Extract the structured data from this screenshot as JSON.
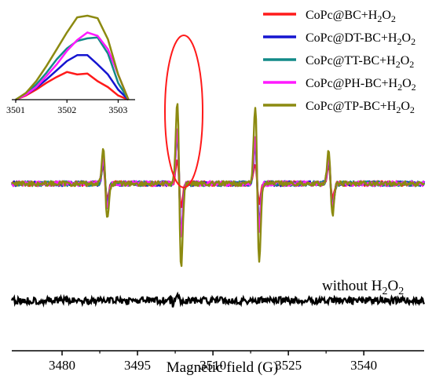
{
  "chart_data": {
    "type": "line",
    "title": "",
    "xlabel": "Magnetic field (G)",
    "ylabel": "",
    "xlim": [
      3470,
      3552
    ],
    "xticks": [
      3480,
      3495,
      3510,
      3525,
      3540
    ],
    "grid": false,
    "legend_placement": "top-right",
    "peaks": [
      {
        "center": 3488.6,
        "amplitude": [
          0.45,
          0.55,
          0.62,
          0.68,
          0.95
        ]
      },
      {
        "center": 3503.3,
        "amplitude": [
          0.62,
          1.35,
          1.4,
          1.45,
          2.2
        ]
      },
      {
        "center": 3518.8,
        "amplitude": [
          0.55,
          1.05,
          1.15,
          1.25,
          2.05
        ]
      },
      {
        "center": 3533.4,
        "amplitude": [
          0.45,
          0.62,
          0.65,
          0.68,
          0.85
        ]
      }
    ],
    "series": [
      {
        "name_base": "CoPc@BC+H",
        "name_sub": "2",
        "name_mid": "O",
        "name_sub2": "2",
        "color": "#ff1a1a"
      },
      {
        "name_base": "CoPc@DT-BC+H",
        "name_sub": "2",
        "name_mid": "O",
        "name_sub2": "2",
        "color": "#1515d0"
      },
      {
        "name_base": "CoPc@TT-BC+H",
        "name_sub": "2",
        "name_mid": "O",
        "name_sub2": "2",
        "color": "#128a88"
      },
      {
        "name_base": "CoPc@PH-BC+H",
        "name_sub": "2",
        "name_mid": "O",
        "name_sub2": "2",
        "color": "#ff1aff"
      },
      {
        "name_base": "CoPc@TP-BC+H",
        "name_sub": "2",
        "name_mid": "O",
        "name_sub2": "2",
        "color": "#8c8a10"
      }
    ],
    "control": {
      "label_base": "without H",
      "label_sub": "2",
      "label_mid": "O",
      "label_sub2": "2",
      "color": "#000000"
    },
    "inset": {
      "xlim": [
        3501,
        3503.3
      ],
      "xticks": [
        3501,
        3502,
        3503
      ],
      "x": [
        3501.0,
        3501.2,
        3501.4,
        3501.6,
        3501.8,
        3502.0,
        3502.2,
        3502.4,
        3502.6,
        3502.8,
        3503.0,
        3503.2
      ],
      "series": [
        {
          "color": "#ff1a1a",
          "values": [
            0.0,
            0.05,
            0.12,
            0.2,
            0.27,
            0.33,
            0.3,
            0.31,
            0.22,
            0.15,
            0.05,
            0.0
          ]
        },
        {
          "color": "#1515d0",
          "values": [
            0.0,
            0.06,
            0.14,
            0.24,
            0.35,
            0.46,
            0.53,
            0.53,
            0.42,
            0.3,
            0.12,
            0.0
          ]
        },
        {
          "color": "#128a88",
          "values": [
            0.0,
            0.07,
            0.18,
            0.32,
            0.48,
            0.61,
            0.7,
            0.73,
            0.74,
            0.55,
            0.2,
            0.0
          ]
        },
        {
          "color": "#ff1aff",
          "values": [
            0.0,
            0.06,
            0.15,
            0.28,
            0.42,
            0.58,
            0.71,
            0.8,
            0.76,
            0.6,
            0.3,
            0.0
          ]
        },
        {
          "color": "#8c8a10",
          "values": [
            0.0,
            0.08,
            0.22,
            0.4,
            0.6,
            0.8,
            0.98,
            1.0,
            0.97,
            0.72,
            0.3,
            0.0
          ]
        }
      ]
    }
  }
}
